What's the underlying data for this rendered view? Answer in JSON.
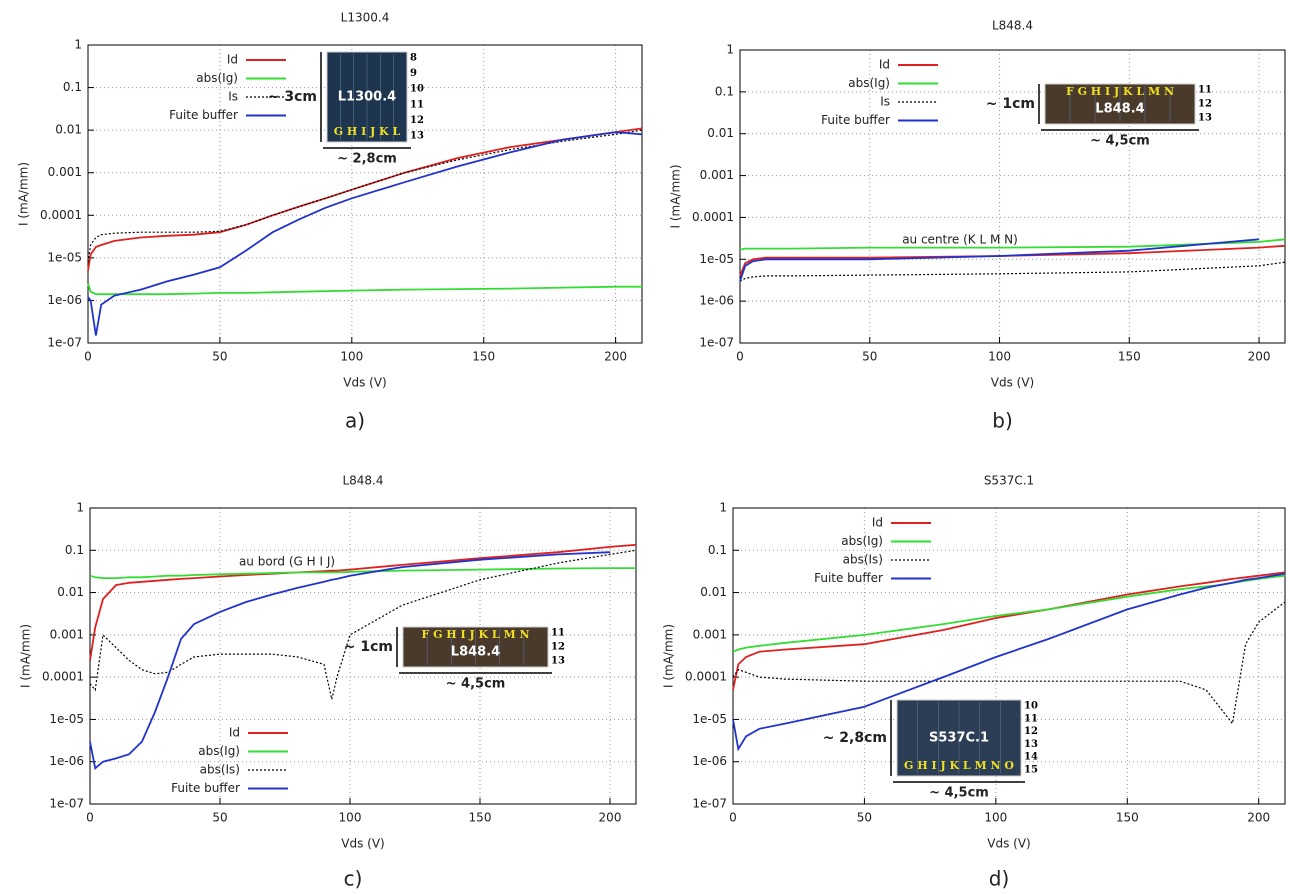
{
  "chart_data": [
    {
      "type": "line",
      "title": "L1300.4",
      "xlabel": "Vds (V)",
      "ylabel": "I  (mA/mm)",
      "caption": "a)",
      "log_y": true,
      "grid": true,
      "legend": "upper left",
      "xlim": [
        0,
        210
      ],
      "xticks": [
        0,
        50,
        100,
        150,
        200
      ],
      "ylim": [
        1e-07,
        1
      ],
      "yticks": [
        {
          "value": 1e-07,
          "label": "1e-07"
        },
        {
          "value": 1e-06,
          "label": "1e-06"
        },
        {
          "value": 1e-05,
          "label": "1e-05"
        },
        0.0001,
        0.001,
        0.01,
        0.1,
        1
      ],
      "x": [
        0,
        1,
        3,
        5,
        10,
        20,
        30,
        40,
        50,
        60,
        70,
        80,
        90,
        100,
        120,
        140,
        160,
        180,
        200,
        210
      ],
      "series": [
        {
          "name": "Id",
          "color": "#e02020",
          "dashed": false,
          "values": [
            5e-06,
            1.2e-05,
            1.8e-05,
            2e-05,
            2.5e-05,
            3e-05,
            3.3e-05,
            3.5e-05,
            4e-05,
            6e-05,
            0.0001,
            0.00016,
            0.00025,
            0.0004,
            0.001,
            0.0022,
            0.004,
            0.006,
            0.009,
            0.011
          ]
        },
        {
          "name": "abs(Ig)",
          "color": "#33dd33",
          "dashed": false,
          "values": [
            2.5e-06,
            1.6e-06,
            1.4e-06,
            1.4e-06,
            1.4e-06,
            1.4e-06,
            1.4e-06,
            1.45e-06,
            1.5e-06,
            1.5e-06,
            1.55e-06,
            1.6e-06,
            1.65e-06,
            1.7e-06,
            1.8e-06,
            1.85e-06,
            1.9e-06,
            2e-06,
            2.1e-06,
            2.1e-06
          ]
        },
        {
          "name": "Is",
          "color": "#000000",
          "dashed": true,
          "values": [
            8e-06,
            2e-05,
            3e-05,
            3.5e-05,
            3.8e-05,
            4e-05,
            4e-05,
            4e-05,
            4.2e-05,
            6e-05,
            0.0001,
            0.00016,
            0.00025,
            0.0004,
            0.001,
            0.002,
            0.0035,
            0.0055,
            0.008,
            0.01
          ]
        },
        {
          "name": "Fuite buffer",
          "color": "#2233cc",
          "dashed": false,
          "values": [
            1.2e-06,
            1e-06,
            1.5e-07,
            8e-07,
            1.3e-06,
            1.8e-06,
            2.8e-06,
            4e-06,
            6e-06,
            1.5e-05,
            4e-05,
            8e-05,
            0.00015,
            0.00025,
            0.0006,
            0.0014,
            0.003,
            0.006,
            0.009,
            0.008
          ]
        }
      ],
      "inset": {
        "label": "L1300.4",
        "height": "~ 3cm",
        "width": "~ 2,8cm",
        "columns": "G H I J K L",
        "rows": [
          "8",
          "9",
          "10",
          "11",
          "12",
          "13"
        ]
      }
    },
    {
      "type": "line",
      "title": "L848.4",
      "xlabel": "Vds (V)",
      "ylabel": "I  (mA/mm)",
      "caption": "b)",
      "log_y": true,
      "grid": true,
      "legend": "upper left",
      "annotation": "au centre (K L M N)",
      "xlim": [
        0,
        210
      ],
      "xticks": [
        0,
        50,
        100,
        150,
        200
      ],
      "ylim": [
        1e-07,
        1
      ],
      "yticks": [
        {
          "value": 1e-07,
          "label": "1e-07"
        },
        {
          "value": 1e-06,
          "label": "1e-06"
        },
        {
          "value": 1e-05,
          "label": "1e-05"
        },
        0.0001,
        0.001,
        0.01,
        0.1,
        1
      ],
      "x": [
        0,
        2,
        5,
        10,
        20,
        50,
        100,
        150,
        200,
        210
      ],
      "series": [
        {
          "name": "Id",
          "color": "#e02020",
          "dashed": false,
          "values": [
            4e-06,
            8e-06,
            1e-05,
            1.1e-05,
            1.1e-05,
            1.1e-05,
            1.2e-05,
            1.4e-05,
            1.9e-05,
            2.1e-05
          ]
        },
        {
          "name": "abs(Ig)",
          "color": "#33dd33",
          "dashed": false,
          "values": [
            1.7e-05,
            1.8e-05,
            1.8e-05,
            1.8e-05,
            1.8e-05,
            1.9e-05,
            1.9e-05,
            2e-05,
            2.6e-05,
            3e-05
          ]
        },
        {
          "name": "Is",
          "color": "#000000",
          "dashed": true,
          "values": [
            3e-06,
            3.5e-06,
            3.8e-06,
            4e-06,
            4e-06,
            4.2e-06,
            4.5e-06,
            5e-06,
            7e-06,
            8.5e-06
          ]
        },
        {
          "name": "Fuite buffer",
          "color": "#2233cc",
          "dashed": false,
          "values": [
            3e-06,
            7e-06,
            9e-06,
            1e-05,
            1e-05,
            1e-05,
            1.2e-05,
            1.6e-05,
            3e-05,
            null
          ]
        }
      ],
      "inset": {
        "label": "L848.4",
        "height": "~ 1cm",
        "width": "~ 4,5cm",
        "columns": "F G H I J K L M N",
        "rows": [
          "11",
          "12",
          "13"
        ]
      }
    },
    {
      "type": "line",
      "title": "L848.4",
      "xlabel": "Vds (V)",
      "ylabel": "I  (mA/mm)",
      "caption": "c)",
      "log_y": true,
      "grid": true,
      "legend": "lower left",
      "annotation": "au bord (G H I J)",
      "xlim": [
        0,
        210
      ],
      "xticks": [
        0,
        50,
        100,
        150,
        200
      ],
      "ylim": [
        1e-07,
        1
      ],
      "yticks": [
        {
          "value": 1e-07,
          "label": "1e-07"
        },
        {
          "value": 1e-06,
          "label": "1e-06"
        },
        {
          "value": 1e-05,
          "label": "1e-05"
        },
        0.0001,
        0.001,
        0.01,
        0.1,
        1
      ],
      "x": [
        0,
        2,
        5,
        10,
        15,
        20,
        25,
        30,
        35,
        40,
        50,
        60,
        70,
        80,
        90,
        93,
        95,
        100,
        120,
        150,
        180,
        200,
        210
      ],
      "series": [
        {
          "name": "Id",
          "color": "#e02020",
          "dashed": false,
          "values": [
            0.00025,
            0.0015,
            0.007,
            0.015,
            0.017,
            0.018,
            0.019,
            0.02,
            0.021,
            0.022,
            0.024,
            0.026,
            0.028,
            0.03,
            0.032,
            0.033,
            0.033,
            0.035,
            0.045,
            0.065,
            0.09,
            0.12,
            0.135
          ]
        },
        {
          "name": "abs(Ig)",
          "color": "#33dd33",
          "dashed": false,
          "values": [
            0.025,
            0.023,
            0.022,
            0.022,
            0.023,
            0.023,
            0.024,
            0.025,
            0.025,
            0.026,
            0.027,
            0.028,
            0.029,
            0.03,
            0.03,
            0.03,
            0.03,
            0.031,
            0.033,
            0.035,
            0.037,
            0.038,
            0.038
          ]
        },
        {
          "name": "abs(Is)",
          "color": "#000000",
          "dashed": true,
          "values": [
            7e-05,
            5e-05,
            0.001,
            0.0005,
            0.00025,
            0.00015,
            0.00012,
            0.00013,
            0.0002,
            0.0003,
            0.00035,
            0.00035,
            0.00035,
            0.0003,
            0.0002,
            3e-05,
            0.0001,
            0.001,
            0.005,
            0.02,
            0.05,
            0.08,
            0.1
          ]
        },
        {
          "name": "Fuite buffer",
          "color": "#2233cc",
          "dashed": false,
          "values": [
            3e-06,
            7e-07,
            1e-06,
            1.2e-06,
            1.5e-06,
            3e-06,
            1.5e-05,
            0.0001,
            0.0008,
            0.0018,
            0.0035,
            0.006,
            0.009,
            0.013,
            0.018,
            0.02,
            0.021,
            0.025,
            0.04,
            0.06,
            0.08,
            0.09,
            null
          ]
        }
      ],
      "inset": {
        "label": "L848.4",
        "height": "~ 1cm",
        "width": "~ 4,5cm",
        "columns": "F G H I J K L M N",
        "rows": [
          "11",
          "12",
          "13"
        ]
      }
    },
    {
      "type": "line",
      "title": "S537C.1",
      "xlabel": "Vds (V)",
      "ylabel": "I  (mA/mm)",
      "caption": "d)",
      "log_y": true,
      "grid": true,
      "legend": "upper left",
      "xlim": [
        0,
        210
      ],
      "xticks": [
        0,
        50,
        100,
        150,
        200
      ],
      "ylim": [
        1e-07,
        1
      ],
      "yticks": [
        {
          "value": 1e-07,
          "label": "1e-07"
        },
        {
          "value": 1e-06,
          "label": "1e-06"
        },
        {
          "value": 1e-05,
          "label": "1e-05"
        },
        0.0001,
        0.001,
        0.01,
        0.1,
        1
      ],
      "x": [
        0,
        2,
        5,
        10,
        20,
        50,
        80,
        100,
        120,
        150,
        170,
        180,
        185,
        190,
        195,
        200,
        210
      ],
      "series": [
        {
          "name": "Id",
          "color": "#e02020",
          "dashed": false,
          "values": [
            5e-05,
            0.0002,
            0.0003,
            0.0004,
            0.00045,
            0.0006,
            0.0013,
            0.0025,
            0.004,
            0.009,
            0.014,
            0.017,
            0.019,
            0.021,
            0.023,
            0.025,
            0.03
          ]
        },
        {
          "name": "abs(Ig)",
          "color": "#33dd33",
          "dashed": false,
          "values": [
            0.0004,
            0.00045,
            0.0005,
            0.00055,
            0.00065,
            0.001,
            0.0018,
            0.0028,
            0.004,
            0.008,
            0.012,
            0.014,
            0.015,
            0.017,
            0.019,
            0.021,
            0.025
          ]
        },
        {
          "name": "abs(Is)",
          "color": "#000000",
          "dashed": true,
          "values": [
            0.0001,
            0.00015,
            0.00013,
            0.0001,
            9e-05,
            8e-05,
            8e-05,
            8e-05,
            8e-05,
            8e-05,
            8e-05,
            5e-05,
            2e-05,
            8e-06,
            0.0006,
            0.002,
            0.006
          ]
        },
        {
          "name": "Fuite buffer",
          "color": "#2233cc",
          "dashed": false,
          "values": [
            1e-05,
            2e-06,
            4e-06,
            6e-06,
            8e-06,
            2e-05,
            0.0001,
            0.0003,
            0.0008,
            0.004,
            0.009,
            0.013,
            0.015,
            0.017,
            0.02,
            0.022,
            0.028
          ]
        }
      ],
      "inset": {
        "label": "S537C.1",
        "height": "~ 2,8cm",
        "width": "~ 4,5cm",
        "columns": "G H I J K L M N O",
        "rows": [
          "10",
          "11",
          "12",
          "13",
          "14",
          "15"
        ]
      }
    }
  ]
}
